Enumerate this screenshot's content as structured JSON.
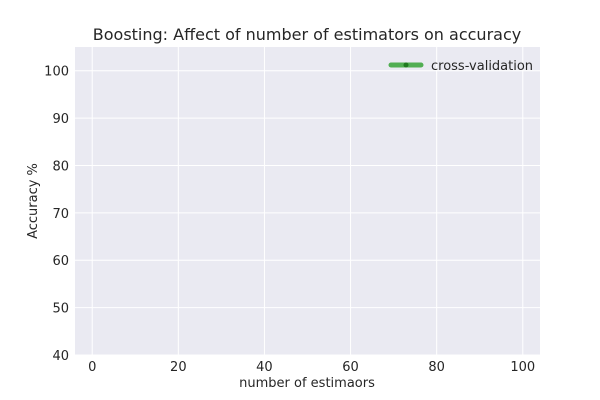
{
  "chart_data": {
    "type": "line",
    "title": "Boosting: Affect of number of estimators on accuracy",
    "xlabel": "number of estimaors",
    "ylabel": "Accuracy %",
    "xlim": [
      -4,
      104
    ],
    "ylim": [
      40,
      105
    ],
    "xticks": [
      0,
      20,
      40,
      60,
      80,
      100
    ],
    "yticks": [
      40,
      50,
      60,
      70,
      80,
      90,
      100
    ],
    "x_tick_labels": [
      "0",
      "20",
      "40",
      "60",
      "80",
      "100"
    ],
    "y_tick_labels": [
      "40",
      "50",
      "60",
      "70",
      "80",
      "90",
      "100"
    ],
    "grid": true,
    "legend_position": "top-right",
    "series": [
      {
        "name": "cross-validation",
        "color": "#2ca02c",
        "x": [],
        "y": []
      }
    ]
  },
  "colors": {
    "plot_background": "#eaeaf2",
    "grid": "#ffffff",
    "text": "#262626",
    "series": "#2ca02c"
  }
}
